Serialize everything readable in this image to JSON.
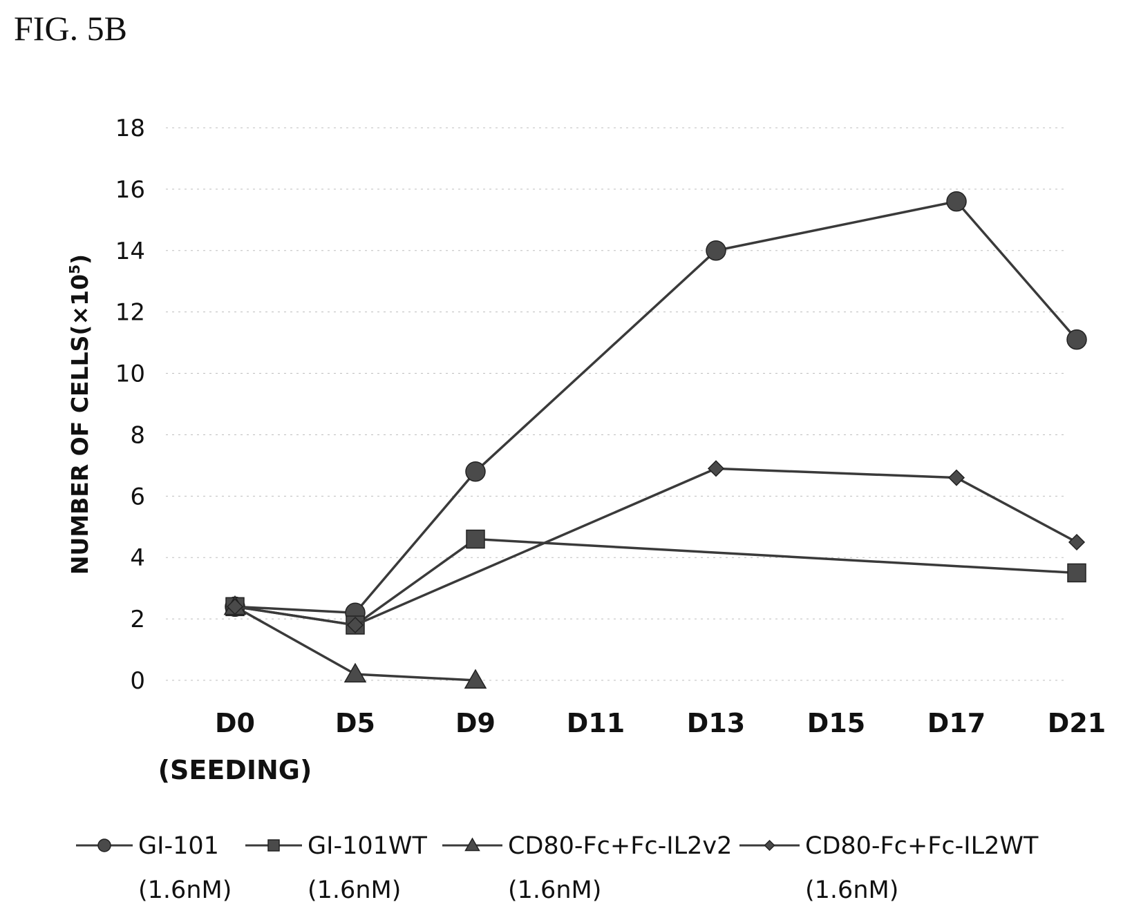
{
  "figure_label": "FIG. 5B",
  "chart_data": {
    "type": "line",
    "title": "",
    "xlabel": "",
    "ylabel": "NUMBER OF CELLS(×10",
    "ylabel_superscript": "5",
    "ylabel_close": ")",
    "categories": [
      "D0",
      "D5",
      "D9",
      "D11",
      "D13",
      "D15",
      "D17",
      "D21"
    ],
    "category_sublabels": [
      "(SEEDING)",
      "",
      "",
      "",
      "",
      "",
      "",
      ""
    ],
    "ylim": [
      0,
      18
    ],
    "yticks": [
      0,
      2,
      4,
      6,
      8,
      10,
      12,
      14,
      16,
      18
    ],
    "grid": true,
    "legend_position": "bottom",
    "series": [
      {
        "name": "GI-101",
        "name_line2": "(1.6nM)",
        "marker": "circle",
        "points": [
          [
            "D0",
            2.4
          ],
          [
            "D5",
            2.2
          ],
          [
            "D9",
            6.8
          ],
          [
            "D13",
            14.0
          ],
          [
            "D17",
            15.6
          ],
          [
            "D21",
            11.1
          ]
        ]
      },
      {
        "name": "GI-101WT",
        "name_line2": "(1.6nM)",
        "marker": "square",
        "points": [
          [
            "D0",
            2.4
          ],
          [
            "D5",
            1.8
          ],
          [
            "D9",
            4.6
          ],
          [
            "D21",
            3.5
          ]
        ]
      },
      {
        "name": "CD80-Fc+Fc-IL2v2",
        "name_line2": "(1.6nM)",
        "marker": "triangle",
        "points": [
          [
            "D0",
            2.4
          ],
          [
            "D5",
            0.2
          ],
          [
            "D9",
            0.0
          ]
        ]
      },
      {
        "name": "CD80-Fc+Fc-IL2WT",
        "name_line2": "(1.6nM)",
        "marker": "diamond",
        "points": [
          [
            "D0",
            2.4
          ],
          [
            "D5",
            1.8
          ],
          [
            "D13",
            6.9
          ],
          [
            "D17",
            6.6
          ],
          [
            "D21",
            4.5
          ]
        ]
      }
    ]
  }
}
